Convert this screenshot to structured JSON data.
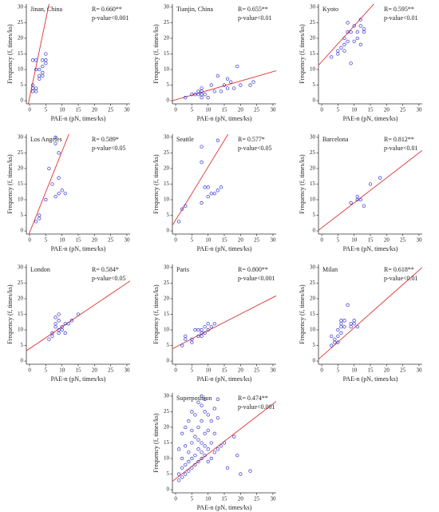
{
  "chart_data": [
    {
      "type": "scatter",
      "title": "Jinan, China",
      "r_text": "R= 0.660**",
      "p_text": "p-value<0.001",
      "xlabel": "PAE-n (pN, times/ks)",
      "ylabel": "Frequency (f, times/ks)",
      "xlim": [
        -1,
        31
      ],
      "ylim": [
        -1,
        31
      ],
      "xticks": [
        0,
        5,
        10,
        15,
        20,
        25,
        30
      ],
      "yticks": [
        0,
        5,
        10,
        15,
        20,
        25,
        30
      ],
      "color": "#3333cc",
      "line_color": "#e03030",
      "x": [
        1,
        1,
        1,
        1,
        2,
        2,
        2,
        3,
        3,
        3,
        4,
        4,
        4,
        4,
        5,
        5,
        5,
        2
      ],
      "y": [
        3,
        4,
        5,
        13,
        3,
        4,
        13,
        7,
        8,
        10,
        8,
        9,
        11,
        13,
        12,
        13,
        15,
        10
      ],
      "fit": {
        "slope": 5,
        "intercept": 1
      }
    },
    {
      "type": "scatter",
      "title": "Tianjin, China",
      "r_text": "R= 0.655**",
      "p_text": "p-value<0.01",
      "xlabel": "PAE-n (pN, times/ks)",
      "ylabel": "Frequency (f, times/ks)",
      "xlim": [
        -1,
        31
      ],
      "ylim": [
        -1,
        31
      ],
      "xticks": [
        0,
        5,
        10,
        15,
        20,
        25,
        30
      ],
      "yticks": [
        0,
        5,
        10,
        15,
        20,
        25,
        30
      ],
      "color": "#3333cc",
      "line_color": "#e03030",
      "x": [
        3,
        5,
        6,
        7,
        7,
        8,
        8,
        8,
        8,
        9,
        10,
        11,
        12,
        13,
        14,
        15,
        16,
        17,
        18,
        19,
        20,
        23,
        24,
        16
      ],
      "y": [
        1,
        2,
        2,
        2,
        3,
        1,
        2,
        3,
        4,
        2,
        1,
        5,
        3,
        8,
        3,
        5,
        4,
        6,
        4,
        11,
        5,
        5,
        6,
        7
      ],
      "fit": {
        "slope": 0.3,
        "intercept": 0.3
      }
    },
    {
      "type": "scatter",
      "title": "Kyoto",
      "r_text": "R= 0.595**",
      "p_text": "p-value<0.01",
      "xlabel": "PAE-n (pN, times/ks)",
      "ylabel": "Frequency (f, times/ks)",
      "xlim": [
        -1,
        31
      ],
      "ylim": [
        -1,
        31
      ],
      "xticks": [
        0,
        5,
        10,
        15,
        20,
        25,
        30
      ],
      "yticks": [
        0,
        5,
        10,
        15,
        20,
        25,
        30
      ],
      "color": "#3333cc",
      "line_color": "#e03030",
      "x": [
        3,
        5,
        5,
        6,
        7,
        7,
        8,
        8,
        8,
        9,
        9,
        10,
        10,
        11,
        11,
        12,
        12,
        12,
        13,
        13,
        7
      ],
      "y": [
        14,
        15,
        16,
        17,
        16,
        18,
        19,
        25,
        22,
        22,
        12,
        19,
        24,
        22,
        20,
        26,
        24,
        18,
        22,
        23,
        20
      ],
      "fit": {
        "slope": 1.15,
        "intercept": 12.5
      }
    },
    {
      "type": "scatter",
      "title": "Los Angeles",
      "r_text": "R= 0.589*",
      "p_text": "p-value<0.05",
      "xlabel": "PAE-n (pN, times/ks)",
      "ylabel": "Frequency (f, times/ks)",
      "xlim": [
        -1,
        31
      ],
      "ylim": [
        -1,
        31
      ],
      "xticks": [
        0,
        5,
        10,
        15,
        20,
        25,
        30
      ],
      "yticks": [
        0,
        5,
        10,
        15,
        20,
        25,
        30
      ],
      "color": "#3333cc",
      "line_color": "#e03030",
      "x": [
        2,
        3,
        3,
        5,
        6,
        7,
        8,
        8,
        9,
        8,
        9,
        9,
        11,
        10
      ],
      "y": [
        3,
        4,
        5,
        10,
        20,
        15,
        30,
        28,
        25,
        11,
        12,
        17,
        12,
        13
      ],
      "fit": {
        "slope": 2.6,
        "intercept": -0.5
      }
    },
    {
      "type": "scatter",
      "title": "Seattle",
      "r_text": "R= 0.577*",
      "p_text": "p-value<0.05",
      "xlabel": "PAE-n (pN, times/ks)",
      "ylabel": "Frequency (f, times/ks)",
      "xlim": [
        -1,
        31
      ],
      "ylim": [
        -1,
        31
      ],
      "xticks": [
        0,
        5,
        10,
        15,
        20,
        25,
        30
      ],
      "yticks": [
        0,
        5,
        10,
        15,
        20,
        25,
        30
      ],
      "color": "#3333cc",
      "line_color": "#e03030",
      "x": [
        1,
        2,
        3,
        8,
        8,
        8,
        9,
        10,
        10,
        11,
        12,
        13,
        13,
        14
      ],
      "y": [
        3,
        7,
        8,
        9,
        27,
        22,
        14,
        14,
        11,
        12,
        12,
        13,
        29,
        14
      ],
      "fit": {
        "slope": 1.7,
        "intercept": 3.5
      }
    },
    {
      "type": "scatter",
      "title": "Barcelona",
      "r_text": "R= 0.812**",
      "p_text": "p-value<0.01",
      "xlabel": "PAE-n (pN, times/ks)",
      "ylabel": "Frequency (f, times/ks)",
      "xlim": [
        -1,
        31
      ],
      "ylim": [
        -1,
        31
      ],
      "xticks": [
        0,
        5,
        10,
        15,
        20,
        25,
        30
      ],
      "yticks": [
        0,
        5,
        10,
        15,
        20,
        25,
        30
      ],
      "color": "#3333cc",
      "line_color": "#e03030",
      "x": [
        9,
        11,
        11,
        12,
        13,
        15,
        18
      ],
      "y": [
        9,
        11,
        10,
        10,
        8,
        15,
        17
      ],
      "fit": {
        "slope": 0.8,
        "intercept": 1
      }
    },
    {
      "type": "scatter",
      "title": "London",
      "r_text": "R= 0.584*",
      "p_text": "p-value<0.05",
      "xlabel": "PAE-n (pN, times/ks)",
      "ylabel": "Frequency (f, times/ks)",
      "xlim": [
        -1,
        31
      ],
      "ylim": [
        -1,
        31
      ],
      "xticks": [
        0,
        5,
        10,
        15,
        20,
        25,
        30
      ],
      "yticks": [
        0,
        5,
        10,
        15,
        20,
        25,
        30
      ],
      "color": "#3333cc",
      "line_color": "#e03030",
      "x": [
        6,
        7,
        7,
        8,
        8,
        8,
        9,
        9,
        9,
        10,
        10,
        11,
        11,
        12,
        13,
        15,
        9
      ],
      "y": [
        7,
        8,
        9,
        11,
        12,
        14,
        9,
        15,
        13,
        11,
        10,
        12,
        9,
        12,
        13,
        15,
        10
      ],
      "fit": {
        "slope": 0.7,
        "intercept": 4
      }
    },
    {
      "type": "scatter",
      "title": "Paris",
      "r_text": "R= 0.800**",
      "p_text": "p-value<0.001",
      "xlabel": "PAE-n (pN, times/ks)",
      "ylabel": "Frequency (f, times/ks)",
      "xlim": [
        -1,
        31
      ],
      "ylim": [
        -1,
        31
      ],
      "xticks": [
        0,
        5,
        10,
        15,
        20,
        25,
        30
      ],
      "yticks": [
        0,
        5,
        10,
        15,
        20,
        25,
        30
      ],
      "color": "#3333cc",
      "line_color": "#e03030",
      "x": [
        2,
        3,
        3,
        5,
        5,
        6,
        7,
        7,
        8,
        8,
        9,
        9,
        10,
        10,
        11,
        12,
        8
      ],
      "y": [
        5,
        7,
        8,
        6,
        7,
        10,
        8,
        10,
        9,
        10,
        9,
        11,
        10,
        12,
        11,
        12,
        8
      ],
      "fit": {
        "slope": 0.53,
        "intercept": 4.5
      }
    },
    {
      "type": "scatter",
      "title": "Milan",
      "r_text": "R= 0.618**",
      "p_text": "p-value<0.01",
      "xlabel": "PAE-n (pN, times/ks)",
      "ylabel": "Frequency (f, times/ks)",
      "xlim": [
        -1,
        31
      ],
      "ylim": [
        -1,
        31
      ],
      "xticks": [
        0,
        5,
        10,
        15,
        20,
        25,
        30
      ],
      "yticks": [
        0,
        5,
        10,
        15,
        20,
        25,
        30
      ],
      "color": "#3333cc",
      "line_color": "#e03030",
      "x": [
        3,
        3,
        4,
        4,
        5,
        5,
        6,
        6,
        6,
        6,
        7,
        7,
        8,
        9,
        9,
        10,
        10,
        11,
        5
      ],
      "y": [
        5,
        8,
        6,
        7,
        8,
        10,
        9,
        11,
        12,
        13,
        11,
        13,
        18,
        11,
        12,
        13,
        12,
        11,
        6
      ],
      "fit": {
        "slope": 0.92,
        "intercept": 1.5
      }
    },
    {
      "type": "scatter",
      "title": "Superposition",
      "r_text": "R= 0.474**",
      "p_text": "p-value<0.001",
      "xlabel": "PAE-n (pN, times/ks)",
      "ylabel": "Frequency (f, times/ks)",
      "xlim": [
        -1,
        31
      ],
      "ylim": [
        -1,
        31
      ],
      "xticks": [
        0,
        5,
        10,
        15,
        20,
        25,
        30
      ],
      "yticks": [
        0,
        5,
        10,
        15,
        20,
        25,
        30
      ],
      "color": "#3333cc",
      "line_color": "#e03030",
      "x": [
        1,
        1,
        1,
        2,
        2,
        2,
        2,
        3,
        3,
        3,
        3,
        4,
        4,
        4,
        4,
        5,
        5,
        5,
        5,
        5,
        6,
        6,
        6,
        6,
        7,
        7,
        7,
        7,
        7,
        8,
        8,
        8,
        8,
        8,
        8,
        9,
        9,
        9,
        9,
        9,
        10,
        10,
        10,
        10,
        11,
        11,
        11,
        12,
        12,
        12,
        13,
        13,
        13,
        14,
        15,
        16,
        18,
        19,
        20,
        23
      ],
      "y": [
        3,
        5,
        13,
        4,
        7,
        10,
        18,
        5,
        8,
        14,
        20,
        6,
        9,
        12,
        22,
        7,
        10,
        15,
        19,
        25,
        8,
        11,
        17,
        24,
        9,
        13,
        16,
        20,
        28,
        10,
        12,
        15,
        22,
        27,
        30,
        11,
        14,
        18,
        25,
        29,
        9,
        13,
        19,
        24,
        10,
        15,
        22,
        12,
        18,
        26,
        13,
        23,
        29,
        14,
        15,
        7,
        17,
        11,
        5,
        6
      ],
      "fit": {
        "slope": 0.8,
        "intercept": 3.5
      }
    }
  ]
}
